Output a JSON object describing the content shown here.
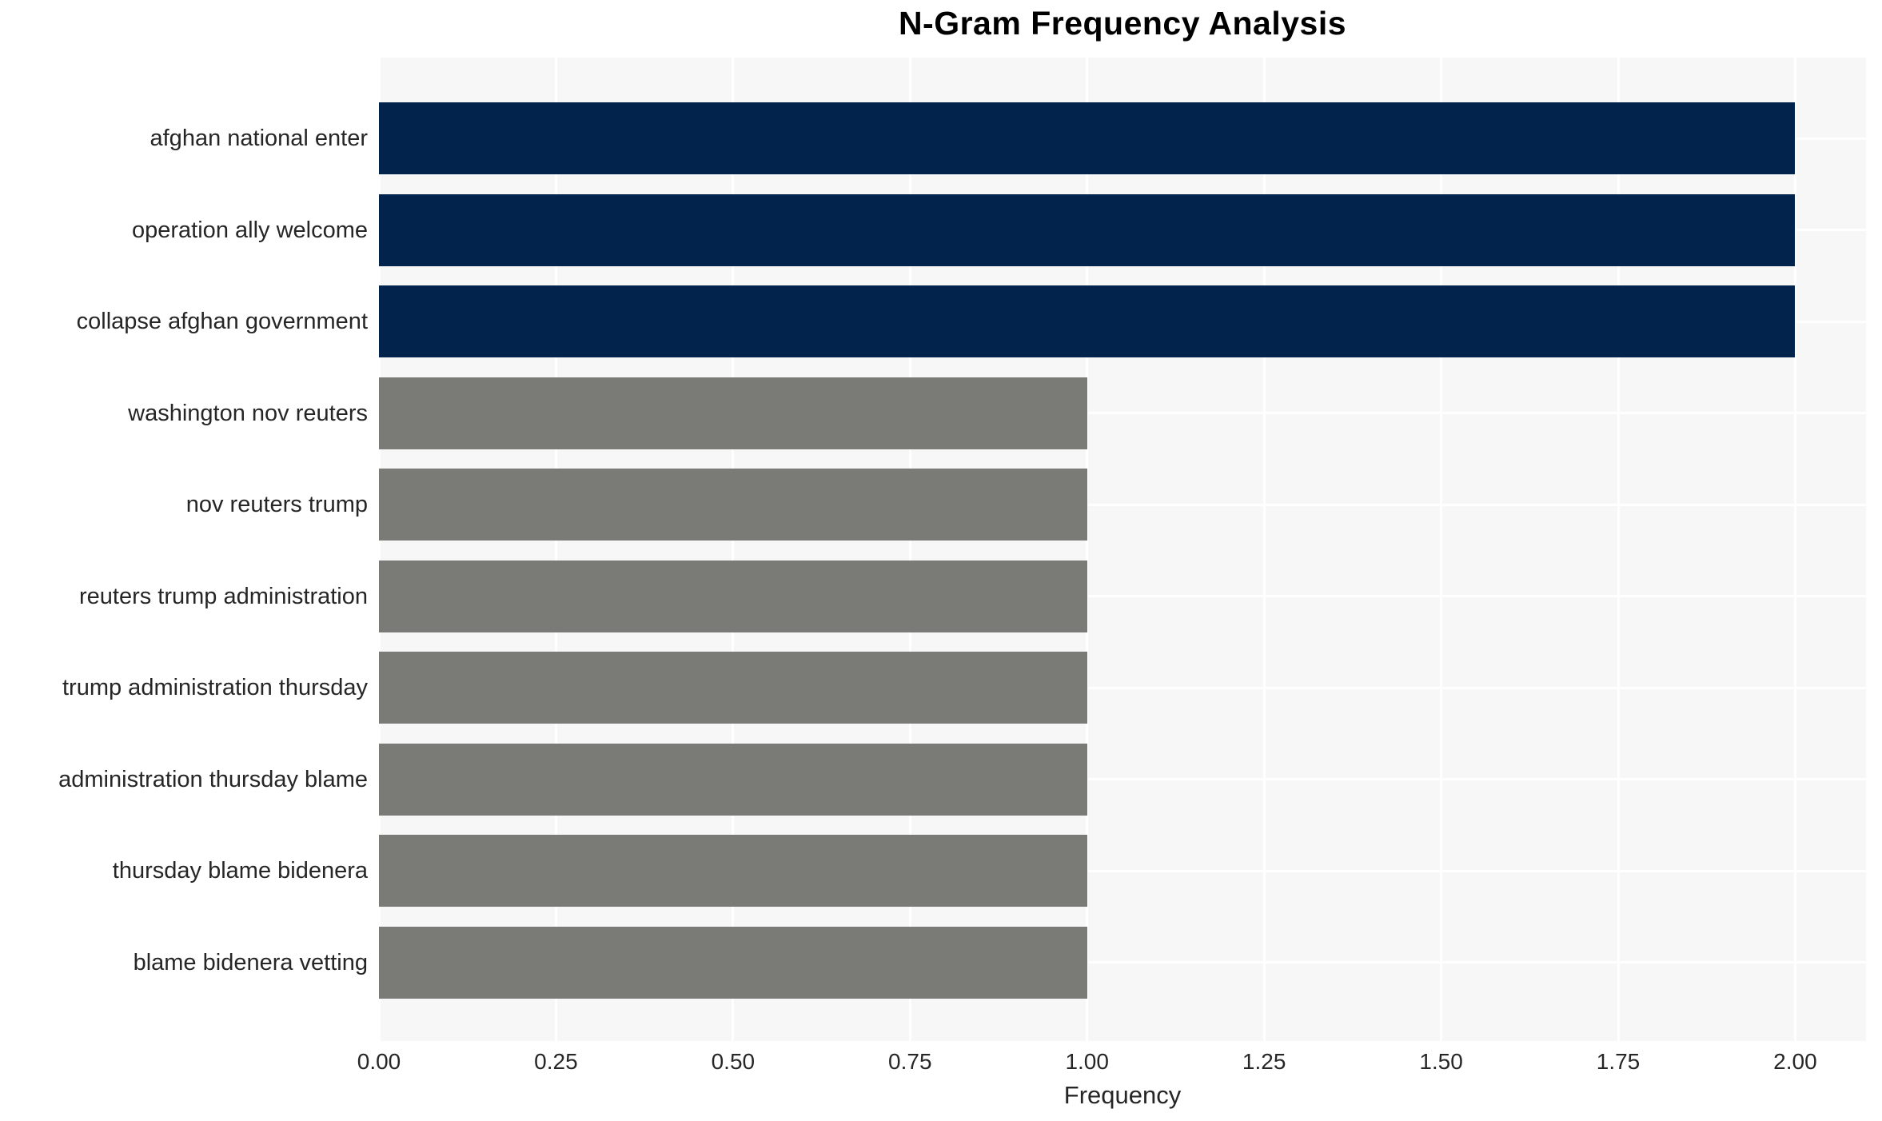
{
  "figure": {
    "title": "N-Gram Frequency Analysis",
    "xlabel": "Frequency"
  },
  "chart_data": {
    "type": "bar",
    "orientation": "horizontal",
    "title": "N-Gram Frequency Analysis",
    "xlabel": "Frequency",
    "ylabel": "",
    "categories": [
      "afghan national enter",
      "operation ally welcome",
      "collapse afghan government",
      "washington nov reuters",
      "nov reuters trump",
      "reuters trump administration",
      "trump administration thursday",
      "administration thursday blame",
      "thursday blame bidenera",
      "blame bidenera vetting"
    ],
    "values": [
      2,
      2,
      2,
      1,
      1,
      1,
      1,
      1,
      1,
      1
    ],
    "bar_colors": [
      "#02234c",
      "#02234c",
      "#02234c",
      "#7a7a76",
      "#7a7a76",
      "#7a7a76",
      "#7a7a76",
      "#7a7a76",
      "#7a7a76",
      "#7a7a76"
    ],
    "xlim": [
      0,
      2.1
    ],
    "xticks": [
      0,
      0.25,
      0.5,
      0.75,
      1.0,
      1.25,
      1.5,
      1.75,
      2.0
    ],
    "xtick_labels": [
      "0.00",
      "0.25",
      "0.50",
      "0.75",
      "1.00",
      "1.25",
      "1.50",
      "1.75",
      "2.00"
    ],
    "grid": true,
    "legend": false,
    "panel_bg": "#f7f7f7",
    "grid_color": "#ffffff",
    "text_color": "#262626"
  }
}
